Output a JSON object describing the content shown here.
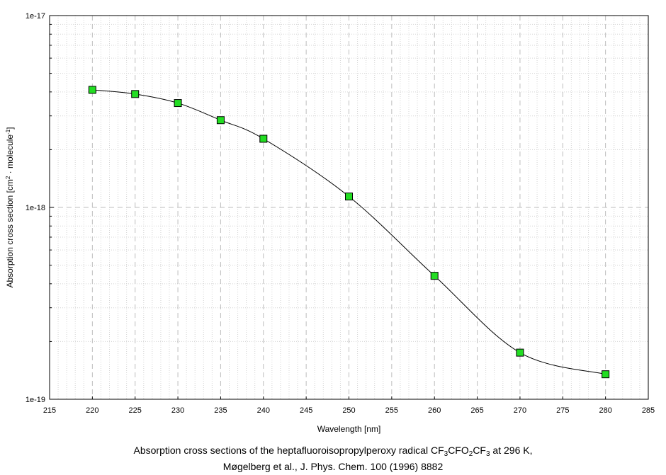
{
  "chart_data": {
    "type": "line",
    "xlabel": "Wavelength [nm]",
    "ylabel": {
      "text_a": "Absorption cross section [cm",
      "sup_a": "2",
      "text_b": " · molecule",
      "sup_b": "-1",
      "text_c": "]"
    },
    "xlim": [
      215,
      285
    ],
    "ylim": [
      1e-19,
      1e-17
    ],
    "y_scale": "log",
    "x_ticks": [
      215,
      220,
      225,
      230,
      235,
      240,
      245,
      250,
      255,
      260,
      265,
      270,
      275,
      280,
      285
    ],
    "y_ticks": [
      {
        "value": 1e-17,
        "label": "1e-17"
      },
      {
        "value": 1e-18,
        "label": "1e-18"
      },
      {
        "value": 1e-19,
        "label": "1e-19"
      }
    ],
    "grid": true,
    "series": [
      {
        "marker": "square",
        "marker_color": "#22dd22",
        "x": [
          220,
          225,
          230,
          235,
          240,
          250,
          260,
          270,
          280
        ],
        "y": [
          4.1e-18,
          3.9e-18,
          3.5e-18,
          2.85e-18,
          2.28e-18,
          1.14e-18,
          4.4e-19,
          1.75e-19,
          1.35e-19
        ]
      }
    ]
  },
  "caption": {
    "line1": {
      "prefix": "Absorption cross sections of the heptafluoroisopropylperoxy radical CF",
      "sub1": "3",
      "mid1": "CFO",
      "sub2": "2",
      "mid2": "CF",
      "sub3": "3",
      "suffix": " at 296 K,"
    },
    "line2": "Møgelberg et al., J. Phys. Chem. 100 (1996) 8882"
  }
}
